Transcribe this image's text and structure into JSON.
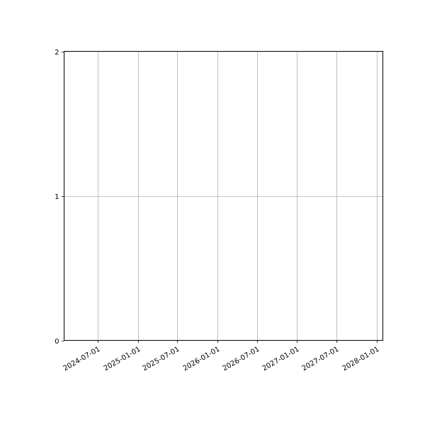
{
  "chart_data": {
    "type": "line",
    "title": "",
    "xlabel": "",
    "ylabel": "",
    "series": [],
    "x_axis_type": "date",
    "xlim": [
      "2024-01-28",
      "2028-01-30"
    ],
    "ylim": [
      0,
      2
    ],
    "x_ticks": [
      "2024-07-01",
      "2025-01-01",
      "2025-07-01",
      "2026-01-01",
      "2026-07-01",
      "2027-01-01",
      "2027-07-01",
      "2028-01-01"
    ],
    "y_ticks": [
      "0",
      "1",
      "2"
    ],
    "grid": true,
    "x_tick_rotation_deg": 30,
    "colors": {
      "grid": "#b0b0b0",
      "spine": "#000000",
      "background": "#ffffff"
    }
  }
}
